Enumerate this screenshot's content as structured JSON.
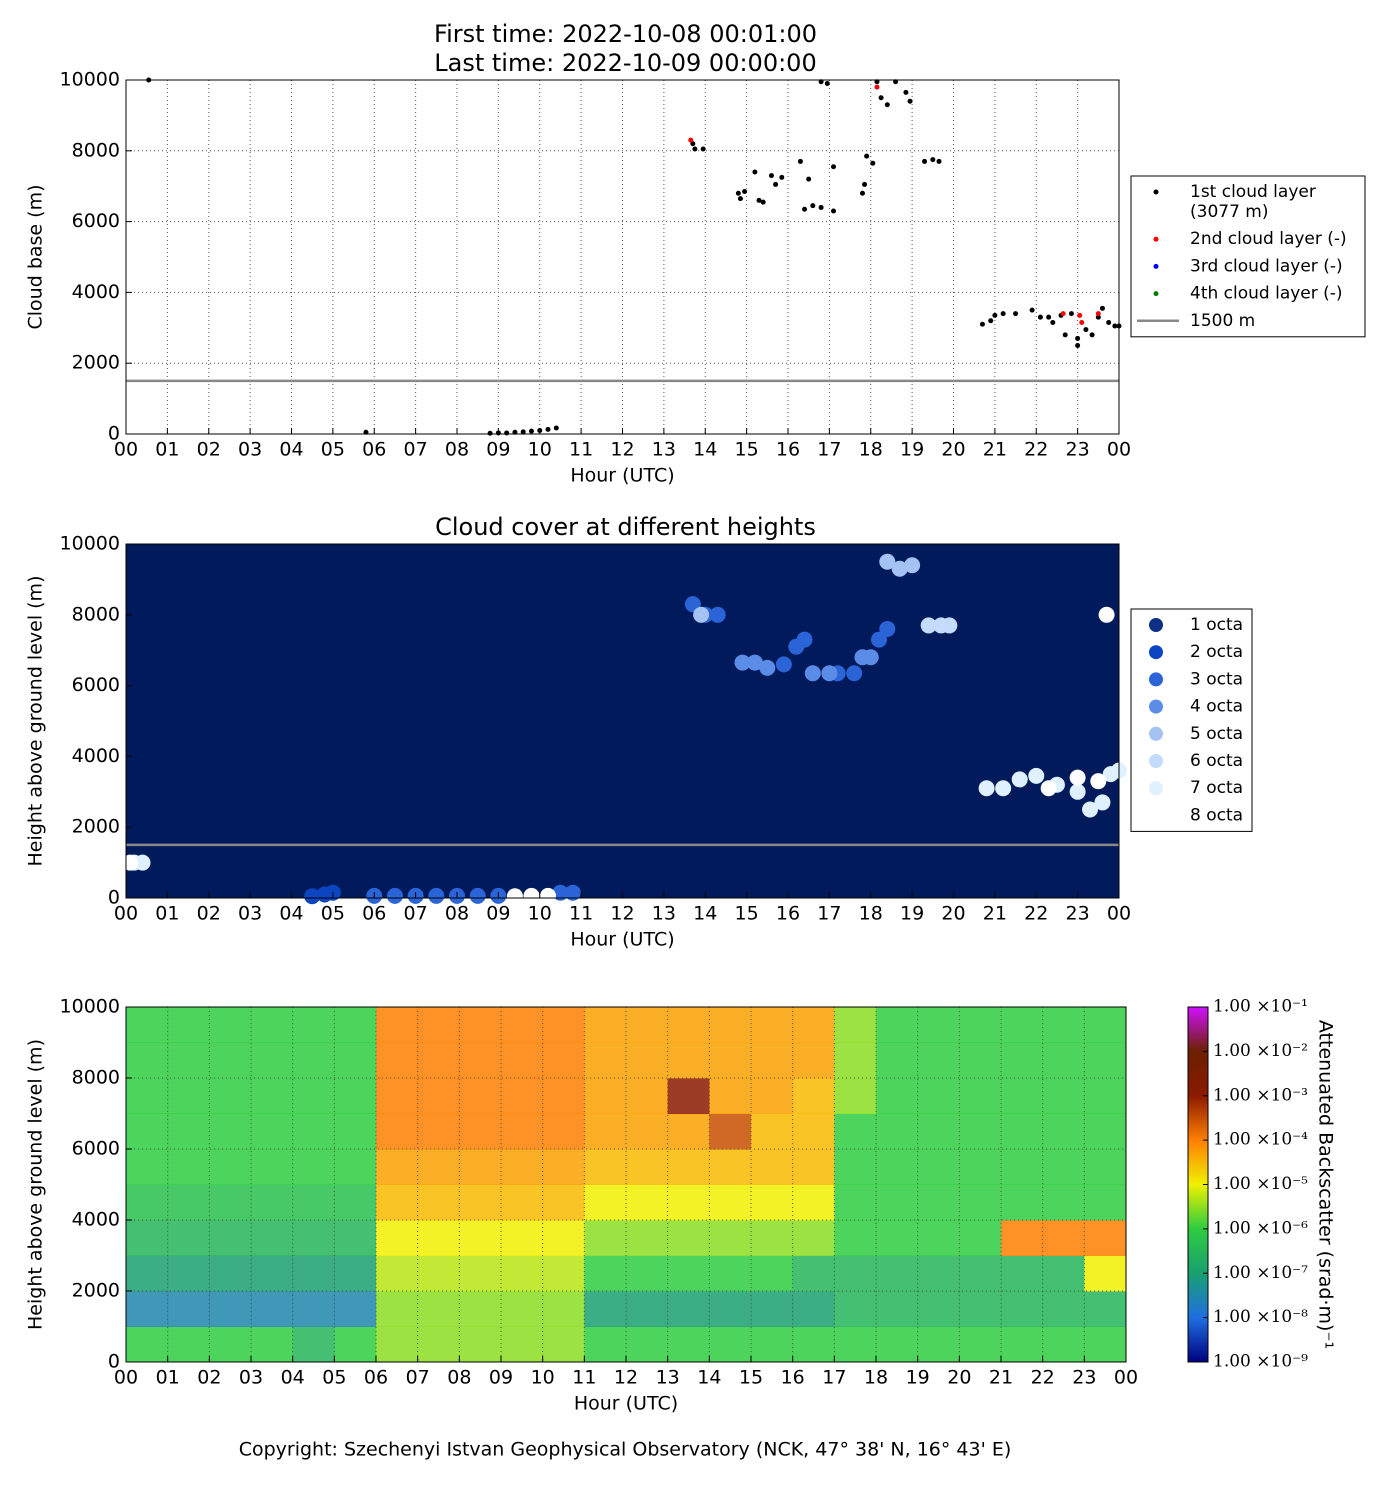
{
  "chart_data": [
    {
      "type": "scatter",
      "title": [
        "First time: 2022-10-08 00:01:00",
        "Last time: 2022-10-09 00:00:00"
      ],
      "xlabel": "Hour (UTC)",
      "ylabel": "Cloud base (m)",
      "xlim": [
        0,
        24
      ],
      "ylim": [
        0,
        10000
      ],
      "grid": true,
      "marker_size": 2.5,
      "background": "#ffffff",
      "xticks": [
        {
          "value": 0,
          "label": "00"
        },
        {
          "value": 1,
          "label": "01"
        },
        {
          "value": 2,
          "label": "02"
        },
        {
          "value": 3,
          "label": "03"
        },
        {
          "value": 4,
          "label": "04"
        },
        {
          "value": 5,
          "label": "05"
        },
        {
          "value": 6,
          "label": "06"
        },
        {
          "value": 7,
          "label": "07"
        },
        {
          "value": 8,
          "label": "08"
        },
        {
          "value": 9,
          "label": "09"
        },
        {
          "value": 10,
          "label": "10"
        },
        {
          "value": 11,
          "label": "11"
        },
        {
          "value": 12,
          "label": "12"
        },
        {
          "value": 13,
          "label": "13"
        },
        {
          "value": 14,
          "label": "14"
        },
        {
          "value": 15,
          "label": "15"
        },
        {
          "value": 16,
          "label": "16"
        },
        {
          "value": 17,
          "label": "17"
        },
        {
          "value": 18,
          "label": "18"
        },
        {
          "value": 19,
          "label": "19"
        },
        {
          "value": 20,
          "label": "20"
        },
        {
          "value": 21,
          "label": "21"
        },
        {
          "value": 22,
          "label": "22"
        },
        {
          "value": 23,
          "label": "23"
        },
        {
          "value": 24,
          "label": "00"
        }
      ],
      "yticks": [
        0,
        2000,
        4000,
        6000,
        8000,
        10000
      ],
      "series": [
        {
          "name": "1st cloud layer",
          "legend_detail": "(3077 m)",
          "color": "#000000",
          "x": [
            0.55,
            5.8,
            8.8,
            9.0,
            9.2,
            9.4,
            9.6,
            9.8,
            10.0,
            10.2,
            10.4,
            13.7,
            13.75,
            13.95,
            14.8,
            14.85,
            14.95,
            15.2,
            15.3,
            15.4,
            15.6,
            15.7,
            15.85,
            16.3,
            16.4,
            16.5,
            16.6,
            16.8,
            16.8,
            16.95,
            17.1,
            17.1,
            17.8,
            17.85,
            17.9,
            18.05,
            18.15,
            18.25,
            18.4,
            18.6,
            18.85,
            18.95,
            19.3,
            19.5,
            19.65,
            20.7,
            20.9,
            21.0,
            21.2,
            21.5,
            21.9,
            22.1,
            22.3,
            22.4,
            22.6,
            22.7,
            22.85,
            23.0,
            23.0,
            23.2,
            23.35,
            23.5,
            23.6,
            23.75,
            23.9,
            24.0
          ],
          "y": [
            10000,
            50,
            20,
            30,
            30,
            50,
            60,
            80,
            100,
            130,
            170,
            8200,
            8050,
            8050,
            6800,
            6650,
            6850,
            7400,
            6600,
            6550,
            7300,
            7050,
            7250,
            7700,
            6350,
            7200,
            6450,
            6400,
            9950,
            9900,
            7550,
            6300,
            6800,
            7050,
            7850,
            7650,
            9950,
            9500,
            9300,
            9950,
            9650,
            9400,
            7700,
            7750,
            7700,
            3100,
            3200,
            3350,
            3400,
            3400,
            3500,
            3300,
            3300,
            3150,
            3350,
            2800,
            3400,
            2700,
            2500,
            2950,
            2800,
            3300,
            3550,
            3150,
            3050,
            3050
          ]
        },
        {
          "name": "2nd cloud layer (-)",
          "color": "#ff0000",
          "x": [
            13.65,
            18.15,
            22.65,
            23.05,
            23.1,
            23.5
          ],
          "y": [
            8300,
            9800,
            3400,
            3350,
            3150,
            3400
          ]
        },
        {
          "name": "3rd cloud layer (-)",
          "color": "#0000ff",
          "x": [],
          "y": []
        },
        {
          "name": "4th cloud layer (-)",
          "color": "#008000",
          "x": [],
          "y": []
        }
      ],
      "hlines": [
        {
          "name": "1500 m",
          "value": 1500,
          "color": "#888888"
        }
      ],
      "legend": "outside-right"
    },
    {
      "type": "scatter",
      "title": [
        "Cloud cover at different heights"
      ],
      "xlabel": "Hour (UTC)",
      "ylabel": "Height above ground level (m)",
      "xlim": [
        0,
        24
      ],
      "ylim": [
        0,
        10000
      ],
      "grid": false,
      "marker_size": 8,
      "background": "#001a5c",
      "xticks": [
        {
          "value": 0,
          "label": "00"
        },
        {
          "value": 1,
          "label": "01"
        },
        {
          "value": 2,
          "label": "02"
        },
        {
          "value": 3,
          "label": "03"
        },
        {
          "value": 4,
          "label": "04"
        },
        {
          "value": 5,
          "label": "05"
        },
        {
          "value": 6,
          "label": "06"
        },
        {
          "value": 7,
          "label": "07"
        },
        {
          "value": 8,
          "label": "08"
        },
        {
          "value": 9,
          "label": "09"
        },
        {
          "value": 10,
          "label": "10"
        },
        {
          "value": 11,
          "label": "11"
        },
        {
          "value": 12,
          "label": "12"
        },
        {
          "value": 13,
          "label": "13"
        },
        {
          "value": 14,
          "label": "14"
        },
        {
          "value": 15,
          "label": "15"
        },
        {
          "value": 16,
          "label": "16"
        },
        {
          "value": 17,
          "label": "17"
        },
        {
          "value": 18,
          "label": "18"
        },
        {
          "value": 19,
          "label": "19"
        },
        {
          "value": 20,
          "label": "20"
        },
        {
          "value": 21,
          "label": "21"
        },
        {
          "value": 22,
          "label": "22"
        },
        {
          "value": 23,
          "label": "23"
        },
        {
          "value": 24,
          "label": "00"
        }
      ],
      "yticks": [
        0,
        2000,
        4000,
        6000,
        8000,
        10000
      ],
      "series": [
        {
          "name": "1 octa",
          "color": "#0d2f86",
          "x": [],
          "y": []
        },
        {
          "name": "2 octa",
          "color": "#0b45c2",
          "x": [
            4.5,
            4.8,
            5.0
          ],
          "y": [
            50,
            100,
            150
          ]
        },
        {
          "name": "3 octa",
          "color": "#2b64d6",
          "x": [
            6.0,
            6.5,
            7.0,
            7.5,
            8.0,
            8.5,
            9.0,
            10.5,
            10.8,
            13.7,
            14.0,
            14.3,
            16.2,
            16.4,
            17.2,
            17.6,
            18.2,
            18.4,
            15.9
          ],
          "y": [
            60,
            60,
            60,
            60,
            60,
            60,
            60,
            150,
            150,
            8300,
            8000,
            8000,
            7100,
            7300,
            6350,
            6350,
            7300,
            7600,
            6600
          ]
        },
        {
          "name": "4 octa",
          "color": "#5b8de8",
          "x": [
            14.9,
            15.2,
            15.5,
            16.6,
            17.0,
            17.8,
            18.0
          ],
          "y": [
            6650,
            6650,
            6500,
            6350,
            6350,
            6800,
            6800
          ]
        },
        {
          "name": "5 octa",
          "color": "#a4c2f4",
          "x": [
            18.4,
            18.7,
            19.0,
            13.9
          ],
          "y": [
            9500,
            9300,
            9400,
            8000
          ]
        },
        {
          "name": "6 octa",
          "color": "#c4dbfb",
          "x": [
            19.4,
            19.7,
            19.9
          ],
          "y": [
            7700,
            7700,
            7700
          ]
        },
        {
          "name": "7 octa",
          "color": "#dff0ff",
          "x": [
            0.2,
            0.4,
            20.8,
            21.2,
            21.6,
            22.0,
            22.5,
            23.0,
            23.3,
            23.6,
            23.8,
            24.0
          ],
          "y": [
            1000,
            1000,
            3100,
            3100,
            3350,
            3450,
            3200,
            3000,
            2500,
            2700,
            3500,
            3600
          ]
        },
        {
          "name": "8 octa",
          "color": "#ffffff",
          "x": [
            0.1,
            9.4,
            9.8,
            10.2,
            22.3,
            23.0,
            23.5,
            23.7
          ],
          "y": [
            1000,
            50,
            60,
            60,
            3100,
            3400,
            3300,
            8000
          ]
        }
      ],
      "hlines": [
        {
          "value": 1500,
          "color": "#888888"
        }
      ],
      "legend": "outside-right"
    },
    {
      "type": "heatmap",
      "xlabel": "Hour (UTC)",
      "ylabel": "Height above ground level (m)",
      "xlim": [
        0,
        24
      ],
      "ylim": [
        0,
        10000
      ],
      "grid": true,
      "xticks": [
        {
          "value": 0,
          "label": "00"
        },
        {
          "value": 1,
          "label": "01"
        },
        {
          "value": 2,
          "label": "02"
        },
        {
          "value": 3,
          "label": "03"
        },
        {
          "value": 4,
          "label": "04"
        },
        {
          "value": 5,
          "label": "05"
        },
        {
          "value": 6,
          "label": "06"
        },
        {
          "value": 7,
          "label": "07"
        },
        {
          "value": 8,
          "label": "08"
        },
        {
          "value": 9,
          "label": "09"
        },
        {
          "value": 10,
          "label": "10"
        },
        {
          "value": 11,
          "label": "11"
        },
        {
          "value": 12,
          "label": "12"
        },
        {
          "value": 13,
          "label": "13"
        },
        {
          "value": 14,
          "label": "14"
        },
        {
          "value": 15,
          "label": "15"
        },
        {
          "value": 16,
          "label": "16"
        },
        {
          "value": 17,
          "label": "17"
        },
        {
          "value": 18,
          "label": "18"
        },
        {
          "value": 19,
          "label": "19"
        },
        {
          "value": 20,
          "label": "20"
        },
        {
          "value": 21,
          "label": "21"
        },
        {
          "value": 22,
          "label": "22"
        },
        {
          "value": 23,
          "label": "23"
        },
        {
          "value": 24,
          "label": "00"
        }
      ],
      "yticks": [
        0,
        2000,
        4000,
        6000,
        8000,
        10000
      ],
      "z": [
        [
          1e-06,
          1e-06,
          1e-06,
          1e-06,
          3e-07,
          1e-06,
          3e-06,
          3e-06,
          3e-06,
          3e-06,
          3e-06,
          1e-06,
          1e-06,
          1e-06,
          1e-06,
          1e-06,
          1e-06,
          1e-06,
          1e-06,
          1e-06,
          1e-06,
          1e-06,
          1e-06,
          1e-06
        ],
        [
          3e-08,
          3e-08,
          3e-08,
          3e-08,
          3e-08,
          3e-08,
          3e-06,
          3e-06,
          3e-06,
          3e-06,
          3e-06,
          1e-07,
          1e-07,
          1e-07,
          1e-07,
          1e-07,
          1e-07,
          3e-07,
          3e-07,
          3e-07,
          3e-07,
          3e-07,
          3e-07,
          3e-07
        ],
        [
          1e-07,
          1e-07,
          1e-07,
          1e-07,
          1e-07,
          1e-07,
          5e-06,
          5e-06,
          5e-06,
          5e-06,
          5e-06,
          1e-06,
          1e-06,
          1e-06,
          1e-06,
          1e-06,
          3e-07,
          3e-07,
          3e-07,
          3e-07,
          3e-07,
          3e-07,
          3e-07,
          1e-05
        ],
        [
          3e-07,
          3e-07,
          3e-07,
          3e-07,
          3e-07,
          3e-07,
          1e-05,
          1e-05,
          1e-05,
          1e-05,
          1e-05,
          3e-06,
          3e-06,
          3e-06,
          3e-06,
          3e-06,
          3e-06,
          1e-06,
          1e-06,
          1e-06,
          1e-06,
          0.0001,
          0.0001,
          0.0001
        ],
        [
          5e-07,
          5e-07,
          5e-07,
          5e-07,
          5e-07,
          5e-07,
          3e-05,
          3e-05,
          3e-05,
          3e-05,
          3e-05,
          1e-05,
          1e-05,
          1e-05,
          1e-05,
          1e-05,
          1e-05,
          1e-06,
          1e-06,
          1e-06,
          1e-06,
          1e-06,
          1e-06,
          1e-06
        ],
        [
          1e-06,
          1e-06,
          1e-06,
          1e-06,
          1e-06,
          1e-06,
          5e-05,
          5e-05,
          5e-05,
          5e-05,
          5e-05,
          3e-05,
          3e-05,
          3e-05,
          3e-05,
          3e-05,
          3e-05,
          1e-06,
          1e-06,
          1e-06,
          1e-06,
          1e-06,
          1e-06,
          1e-06
        ],
        [
          1e-06,
          1e-06,
          1e-06,
          1e-06,
          1e-06,
          1e-06,
          0.0001,
          0.0001,
          0.0001,
          0.0001,
          0.0001,
          5e-05,
          5e-05,
          5e-05,
          0.0003,
          3e-05,
          3e-05,
          1e-06,
          1e-06,
          1e-06,
          1e-06,
          1e-06,
          1e-06,
          1e-06
        ],
        [
          1e-06,
          1e-06,
          1e-06,
          1e-06,
          1e-06,
          1e-06,
          0.0001,
          0.0001,
          0.0001,
          0.0001,
          0.0001,
          5e-05,
          5e-05,
          0.001,
          5e-05,
          5e-05,
          3e-05,
          3e-06,
          1e-06,
          1e-06,
          1e-06,
          1e-06,
          1e-06,
          1e-06
        ],
        [
          1e-06,
          1e-06,
          1e-06,
          1e-06,
          1e-06,
          1e-06,
          0.0001,
          0.0001,
          0.0001,
          0.0001,
          0.0001,
          5e-05,
          5e-05,
          5e-05,
          5e-05,
          5e-05,
          5e-05,
          3e-06,
          1e-06,
          1e-06,
          1e-06,
          1e-06,
          1e-06,
          1e-06
        ],
        [
          1e-06,
          1e-06,
          1e-06,
          1e-06,
          1e-06,
          1e-06,
          0.0001,
          0.0001,
          0.0001,
          0.0001,
          0.0001,
          5e-05,
          5e-05,
          5e-05,
          5e-05,
          5e-05,
          5e-05,
          3e-06,
          1e-06,
          1e-06,
          1e-06,
          1e-06,
          1e-06,
          1e-06
        ]
      ],
      "log_color": true,
      "clim": [
        1e-09,
        0.1
      ],
      "colorscale": [
        "#000080",
        "#1f6fe0",
        "#1aa070",
        "#2ecc40",
        "#f0f000",
        "#ff7f00",
        "#8b1a00",
        "#6b2000",
        "#d010ff"
      ],
      "colorbar": {
        "label": "Attenuated Backscatter (srad·m)⁻¹",
        "ticks": [
          {
            "value": 1e-09,
            "label": "1.00 ×10⁻⁹"
          },
          {
            "value": 1e-08,
            "label": "1.00 ×10⁻⁸"
          },
          {
            "value": 1e-07,
            "label": "1.00 ×10⁻⁷"
          },
          {
            "value": 1e-06,
            "label": "1.00 ×10⁻⁶"
          },
          {
            "value": 1e-05,
            "label": "1.00 ×10⁻⁵"
          },
          {
            "value": 0.0001,
            "label": "1.00 ×10⁻⁴"
          },
          {
            "value": 0.001,
            "label": "1.00 ×10⁻³"
          },
          {
            "value": 0.01,
            "label": "1.00 ×10⁻²"
          },
          {
            "value": 0.1,
            "label": "1.00 ×10⁻¹"
          }
        ]
      }
    }
  ],
  "footer": "Copyright: Szechenyi Istvan Geophysical Observatory (NCK, 47° 38' N, 16° 43' E)"
}
